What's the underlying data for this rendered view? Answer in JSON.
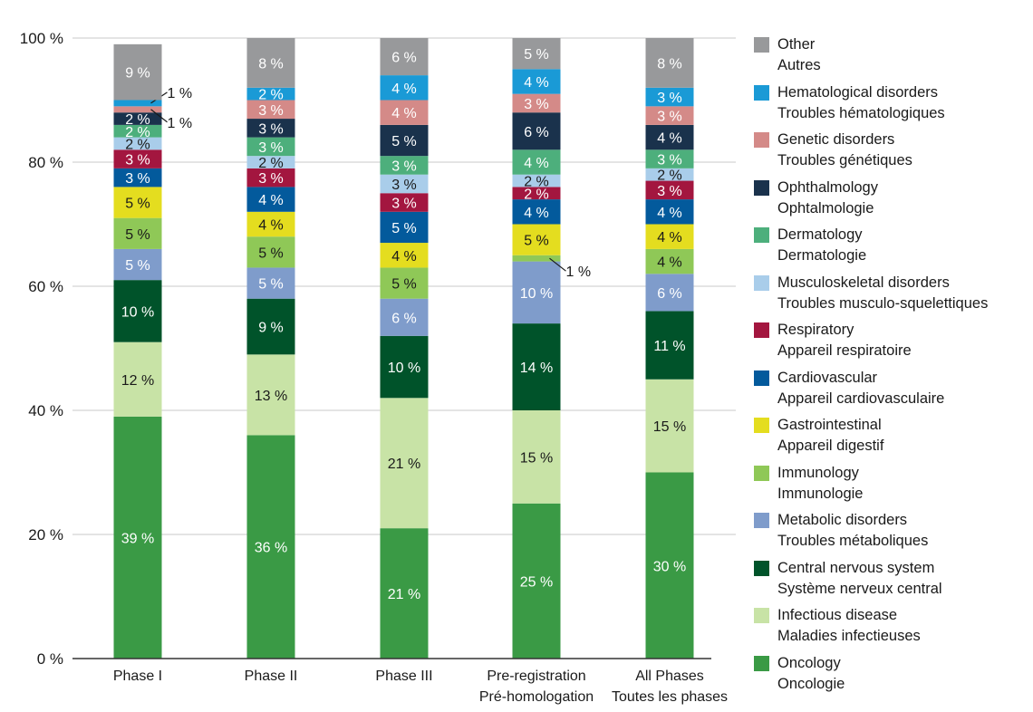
{
  "chart_data": {
    "type": "bar",
    "stacked": true,
    "title": "",
    "xlabel": "",
    "ylabel": "",
    "ylim": [
      0,
      100
    ],
    "yticks": [
      "0 %",
      "20 %",
      "40 %",
      "60 %",
      "80 %",
      "100 %"
    ],
    "grid": true,
    "legend_position": "right",
    "categories": [
      {
        "line1": "Phase I",
        "line2": ""
      },
      {
        "line1": "Phase II",
        "line2": ""
      },
      {
        "line1": "Phase III",
        "line2": ""
      },
      {
        "line1": "Pre-registration",
        "line2": "Pré-homologation"
      },
      {
        "line1": "All Phases",
        "line2": "Toutes les phases"
      }
    ],
    "series": [
      {
        "name": "Oncology",
        "name_fr": "Oncologie",
        "color": "#3a9a45",
        "text_color": "#ffffff",
        "values": [
          39,
          36,
          21,
          25,
          30
        ]
      },
      {
        "name": "Infectious disease",
        "name_fr": "Maladies infectieuses",
        "color": "#c8e3a6",
        "text_color": "#1a1a1a",
        "values": [
          12,
          13,
          21,
          15,
          15
        ]
      },
      {
        "name": "Central nervous system",
        "name_fr": "Système nerveux central",
        "color": "#00532a",
        "text_color": "#ffffff",
        "values": [
          10,
          9,
          10,
          14,
          11
        ]
      },
      {
        "name": "Metabolic disorders",
        "name_fr": "Troubles métaboliques",
        "color": "#7f9ccb",
        "text_color": "#ffffff",
        "values": [
          5,
          5,
          6,
          10,
          6
        ]
      },
      {
        "name": "Immunology",
        "name_fr": "Immunologie",
        "color": "#8fc857",
        "text_color": "#1a1a1a",
        "values": [
          5,
          5,
          5,
          1,
          4
        ]
      },
      {
        "name": "Gastrointestinal",
        "name_fr": "Appareil digestif",
        "color": "#e4dd1f",
        "text_color": "#1a1a1a",
        "values": [
          5,
          4,
          4,
          5,
          4
        ]
      },
      {
        "name": "Cardiovascular",
        "name_fr": "Appareil cardiovasculaire",
        "color": "#035a9c",
        "text_color": "#ffffff",
        "values": [
          3,
          4,
          5,
          4,
          4
        ]
      },
      {
        "name": "Respiratory",
        "name_fr": "Appareil respiratoire",
        "color": "#a3163f",
        "text_color": "#ffffff",
        "values": [
          3,
          3,
          3,
          2,
          3
        ]
      },
      {
        "name": "Musculoskeletal disorders",
        "name_fr": "Troubles musculo-squelettiques",
        "color": "#a9cdea",
        "text_color": "#1a1a1a",
        "values": [
          2,
          2,
          3,
          2,
          2
        ]
      },
      {
        "name": "Dermatology",
        "name_fr": "Dermatologie",
        "color": "#4daf7c",
        "text_color": "#ffffff",
        "values": [
          2,
          3,
          3,
          4,
          3
        ]
      },
      {
        "name": "Ophthalmology",
        "name_fr": "Ophtalmologie",
        "color": "#1a324c",
        "text_color": "#ffffff",
        "values": [
          2,
          3,
          5,
          6,
          4
        ]
      },
      {
        "name": "Genetic disorders",
        "name_fr": "Troubles génétiques",
        "color": "#d48a88",
        "text_color": "#ffffff",
        "values": [
          1,
          3,
          4,
          3,
          3
        ]
      },
      {
        "name": "Hematological disorders",
        "name_fr": "Troubles hématologiques",
        "color": "#1a9ad6",
        "text_color": "#ffffff",
        "values": [
          1,
          2,
          4,
          4,
          3
        ]
      },
      {
        "name": "Other",
        "name_fr": "Autres",
        "color": "#98999b",
        "text_color": "#ffffff",
        "values": [
          9,
          8,
          6,
          5,
          8
        ]
      }
    ],
    "callouts": [
      {
        "category": 0,
        "series": 12,
        "label": "1 %"
      },
      {
        "category": 0,
        "series": 11,
        "label": "1 %"
      },
      {
        "category": 3,
        "series": 4,
        "label": "1 %"
      }
    ],
    "value_suffix": " %"
  }
}
